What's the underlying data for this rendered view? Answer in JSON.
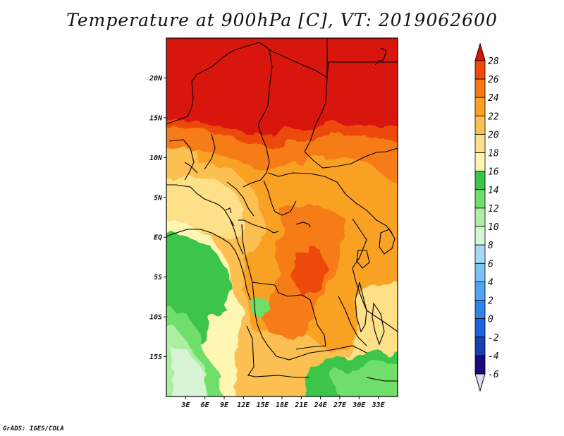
{
  "title": "Temperature at 900hPa [C], VT: 2019062600",
  "credit": "GrADS: IGES/COLA",
  "map": {
    "lon_range": [
      0,
      36
    ],
    "lat_range": [
      -20,
      25
    ],
    "lat_ticks": [
      {
        "value": 20,
        "label": "20N"
      },
      {
        "value": 15,
        "label": "15N"
      },
      {
        "value": 10,
        "label": "10N"
      },
      {
        "value": 5,
        "label": "5N"
      },
      {
        "value": 0,
        "label": "EQ"
      },
      {
        "value": -5,
        "label": "5S"
      },
      {
        "value": -10,
        "label": "10S"
      },
      {
        "value": -15,
        "label": "15S"
      }
    ],
    "lon_ticks": [
      {
        "value": 3,
        "label": "3E"
      },
      {
        "value": 6,
        "label": "6E"
      },
      {
        "value": 9,
        "label": "9E"
      },
      {
        "value": 12,
        "label": "12E"
      },
      {
        "value": 15,
        "label": "15E"
      },
      {
        "value": 18,
        "label": "18E"
      },
      {
        "value": 21,
        "label": "21E"
      },
      {
        "value": 24,
        "label": "24E"
      },
      {
        "value": 27,
        "label": "27E"
      },
      {
        "value": 30,
        "label": "30E"
      },
      {
        "value": 33,
        "label": "33E"
      }
    ]
  },
  "colorbar": {
    "levels": [
      -6,
      -4,
      -2,
      0,
      2,
      4,
      6,
      8,
      10,
      12,
      14,
      16,
      18,
      20,
      22,
      24,
      26,
      28
    ],
    "labels": [
      "28",
      "26",
      "24",
      "22",
      "20",
      "18",
      "16",
      "14",
      "12",
      "10",
      "8",
      "6",
      "4",
      "2",
      "0",
      "-2",
      "-4",
      "-6"
    ],
    "colors": [
      "#1c0a7a",
      "#1a3fb0",
      "#1e64d8",
      "#2f86ea",
      "#4fa5f2",
      "#79c1f6",
      "#a6d8f8",
      "#d7f4d6",
      "#aaf0a0",
      "#70de6a",
      "#3cc548",
      "#fff6b4",
      "#fde087",
      "#fbc051",
      "#f9a121",
      "#f57c12",
      "#ee4a0c",
      "#d9140a"
    ],
    "under_color": "#dcdcf5"
  },
  "field": {
    "description_color_bands": [
      {
        "lat_from": 25,
        "lat_to": 14,
        "band": 17
      },
      {
        "lat_from": 14,
        "lat_to": 11,
        "band": 16
      },
      {
        "lat_from": 11,
        "lat_to": 7,
        "band": 15
      }
    ]
  }
}
